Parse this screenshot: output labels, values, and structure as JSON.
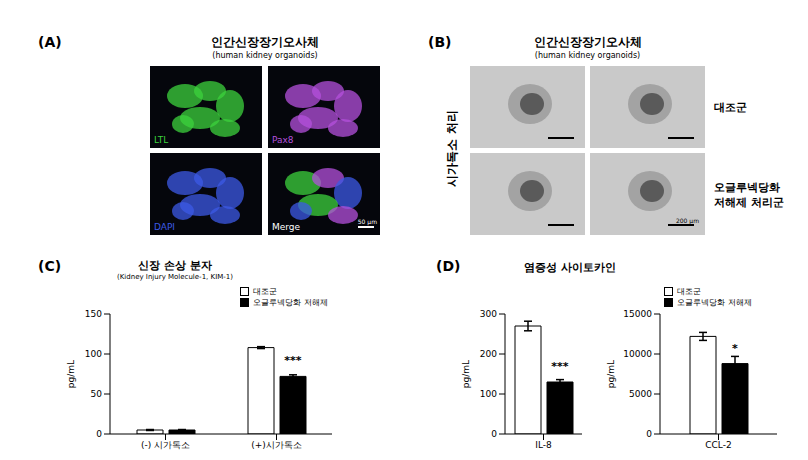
{
  "image_panels": [
    {
      "label": "(A)",
      "title": "인간신장장기오사체",
      "subtitle": "(human kidney organoids)",
      "tiles": [
        {
          "label": "LTL",
          "color": "#3cd23c"
        },
        {
          "label": "Pax8",
          "color": "#b450dc"
        },
        {
          "label": "DAPI",
          "color": "#3c5ae6"
        },
        {
          "label": "Merge",
          "color": "#ffffff"
        }
      ],
      "scale_bar": "50 μm"
    },
    {
      "label": "(B)",
      "title": "인간신장장기오사체",
      "subtitle": "(human kidney organoids)",
      "side_label": "시가독소 처리",
      "row_labels": [
        [
          "대조군"
        ],
        [
          "오글루넥당화",
          "저해제 처리군"
        ]
      ],
      "scale_bar": "200 μm"
    }
  ],
  "chart_panels": [
    {
      "label": "(C)",
      "title": "신장 손상 분자",
      "subtitle": "(Kidney Injury Molecule-1, KIM-1)"
    },
    {
      "label": "(D)",
      "title": "염증성 사이토카인"
    }
  ],
  "chart_data": [
    {
      "type": "bar",
      "y_label": "pg/mL",
      "categories": [
        "(-) 시가독소",
        "(+)시가독소"
      ],
      "series": [
        {
          "name": "대조군",
          "color": "#ffffff",
          "values": [
            5,
            108
          ],
          "errors": [
            0.6,
            1.2
          ]
        },
        {
          "name": "오글루넥당화 저해제",
          "color": "#000000",
          "values": [
            5,
            72
          ],
          "errors": [
            0.6,
            2
          ]
        }
      ],
      "ylim": [
        0,
        150
      ],
      "yticks": [
        0,
        50,
        100,
        150
      ],
      "legend": "upper right",
      "annotations": [
        {
          "text": "***",
          "category": "(+)시가독소",
          "series": "오글루넥당화 저해제"
        }
      ]
    },
    {
      "type": "bar",
      "y_label": "pg/mL",
      "categories": [
        "IL-8"
      ],
      "series": [
        {
          "name": "대조군",
          "color": "#ffffff",
          "values": [
            270
          ],
          "errors": [
            12
          ]
        },
        {
          "name": "오글루넥당화 저해제",
          "color": "#000000",
          "values": [
            130
          ],
          "errors": [
            6
          ]
        }
      ],
      "ylim": [
        0,
        300
      ],
      "yticks": [
        0,
        100,
        200,
        300
      ],
      "annotations": [
        {
          "text": "***",
          "category": "IL-8",
          "series": "오글루넥당화 저해제"
        }
      ]
    },
    {
      "type": "bar",
      "y_label": "pg/mL",
      "categories": [
        "CCL-2"
      ],
      "series": [
        {
          "name": "대조군",
          "color": "#ffffff",
          "values": [
            12200
          ],
          "errors": [
            500
          ]
        },
        {
          "name": "오글루넥당화 저해제",
          "color": "#000000",
          "values": [
            8800
          ],
          "errors": [
            900
          ]
        }
      ],
      "ylim": [
        0,
        15000
      ],
      "yticks": [
        0,
        5000,
        10000,
        15000
      ],
      "legend": "upper left",
      "annotations": [
        {
          "text": "*",
          "category": "CCL-2",
          "series": "오글루넥당화 저해제"
        }
      ]
    }
  ]
}
